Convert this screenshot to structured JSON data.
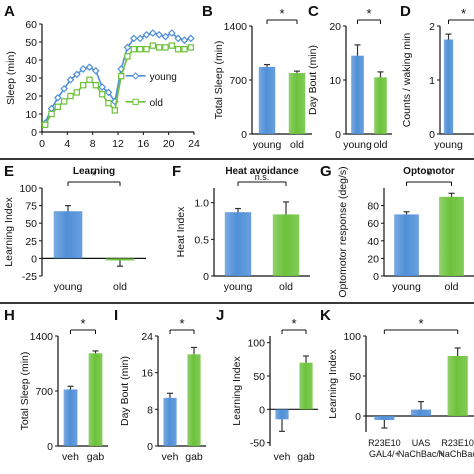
{
  "colors": {
    "young": "#4f8fd8",
    "old": "#6cc23a",
    "axis": "#111111",
    "error": "#333333"
  },
  "chart_data": [
    {
      "id": "A",
      "type": "line",
      "ylabel": "Sleep (min)",
      "xticks": [
        0,
        4,
        8,
        12,
        16,
        20,
        24
      ],
      "yticks": [
        0,
        10,
        20,
        30,
        40,
        50,
        60
      ],
      "xlim": [
        0,
        24
      ],
      "ylim": [
        0,
        60
      ],
      "x": [
        0.5,
        1.5,
        2.5,
        3.5,
        4.5,
        5.5,
        6.5,
        7.5,
        8.5,
        9.5,
        10.5,
        11.5,
        12.5,
        13.5,
        14.5,
        15.5,
        16.5,
        17.5,
        18.5,
        19.5,
        20.5,
        21.5,
        22.5,
        23.5
      ],
      "series": [
        {
          "name": "young",
          "values": [
            5,
            13,
            19,
            24,
            29,
            32,
            35,
            36,
            34,
            25,
            22,
            17,
            35,
            47,
            52,
            52,
            54,
            55,
            54,
            53,
            55,
            52,
            51,
            52
          ]
        },
        {
          "name": "old",
          "values": [
            4,
            10,
            14,
            17,
            20,
            22,
            26,
            29,
            26,
            21,
            16,
            12,
            31,
            42,
            46,
            46,
            46,
            48,
            47,
            47,
            48,
            46,
            46,
            47
          ]
        }
      ],
      "legend": "right"
    },
    {
      "id": "B",
      "type": "bar",
      "ylabel": "Total Sleep (min)",
      "categories": [
        "young",
        "old"
      ],
      "values": [
        870,
        790
      ],
      "errors": [
        30,
        25
      ],
      "yticks": [
        0,
        700,
        1400
      ],
      "ylim": [
        0,
        1400
      ],
      "sig": "*"
    },
    {
      "id": "C",
      "type": "bar",
      "ylabel": "Day Bout (min)",
      "categories": [
        "young",
        "old"
      ],
      "values": [
        14.5,
        10.5
      ],
      "errors": [
        2,
        1
      ],
      "yticks": [
        0,
        10,
        20
      ],
      "ylim": [
        0,
        20
      ],
      "sig": "*"
    },
    {
      "id": "D",
      "type": "bar",
      "ylabel": "Counts / waking min",
      "categories": [
        "young"
      ],
      "values": [
        1.75
      ],
      "errors": [
        0.1
      ],
      "yticks": [
        0,
        1,
        2
      ],
      "ylim": [
        0,
        2
      ],
      "sig": "*"
    },
    {
      "id": "E",
      "type": "bar",
      "title": "Learning",
      "ylabel": "Learning Index",
      "categories": [
        "young",
        "old"
      ],
      "values": [
        67,
        -3
      ],
      "errors": [
        8,
        8
      ],
      "yticks": [
        -25,
        0,
        25,
        50,
        75,
        100
      ],
      "ylim": [
        -25,
        100
      ],
      "sig": "*"
    },
    {
      "id": "F",
      "type": "bar",
      "title": "Heat avoidance",
      "ylabel": "Heat Index",
      "categories": [
        "young",
        "old"
      ],
      "values": [
        0.87,
        0.84
      ],
      "errors": [
        0.05,
        0.17
      ],
      "yticks": [
        0,
        0.5,
        1.0
      ],
      "yticklabels": [
        "0",
        "0.5",
        "1.0"
      ],
      "ylim": [
        0,
        1.2
      ],
      "sig": "n.s."
    },
    {
      "id": "G",
      "type": "bar",
      "title": "Optomotor",
      "ylabel": "Optomotor response (deg/s)",
      "categories": [
        "young",
        "old"
      ],
      "values": [
        70,
        90
      ],
      "errors": [
        3,
        4
      ],
      "yticks": [
        0,
        20,
        40,
        60,
        80
      ],
      "ylim": [
        0,
        100
      ],
      "sig": "*"
    },
    {
      "id": "H",
      "type": "bar",
      "ylabel": "Total Sleep (min)",
      "categories": [
        "veh",
        "gab"
      ],
      "values": [
        720,
        1180
      ],
      "errors": [
        40,
        30
      ],
      "yticks": [
        0,
        700,
        1400
      ],
      "ylim": [
        0,
        1400
      ],
      "sig": "*"
    },
    {
      "id": "I",
      "type": "bar",
      "ylabel": "Day Bout (min)",
      "categories": [
        "veh",
        "gab"
      ],
      "values": [
        10.5,
        20
      ],
      "errors": [
        1,
        1.5
      ],
      "yticks": [
        0,
        8,
        16,
        24
      ],
      "ylim": [
        0,
        24
      ],
      "sig": "*"
    },
    {
      "id": "J",
      "type": "bar",
      "ylabel": "Learning Index",
      "categories": [
        "veh",
        "gab"
      ],
      "values": [
        -15,
        70
      ],
      "errors": [
        18,
        10
      ],
      "yticks": [
        -50,
        0,
        50,
        100
      ],
      "ylim": [
        -55,
        110
      ],
      "sig": "*"
    },
    {
      "id": "K",
      "type": "bar",
      "ylabel": "Learning Index",
      "categories": [
        "R23E10\nGAL4/+",
        "UAS\nNaChBac/+",
        "R23E10\nNaChBac"
      ],
      "values": [
        -5,
        8,
        75
      ],
      "errors": [
        10,
        10,
        10
      ],
      "yticks": [
        0,
        50,
        100
      ],
      "ylim": [
        -20,
        100
      ],
      "sig": "*"
    }
  ],
  "panel_labels": [
    "A",
    "B",
    "C",
    "D",
    "E",
    "F",
    "G",
    "H",
    "I",
    "J",
    "K"
  ]
}
